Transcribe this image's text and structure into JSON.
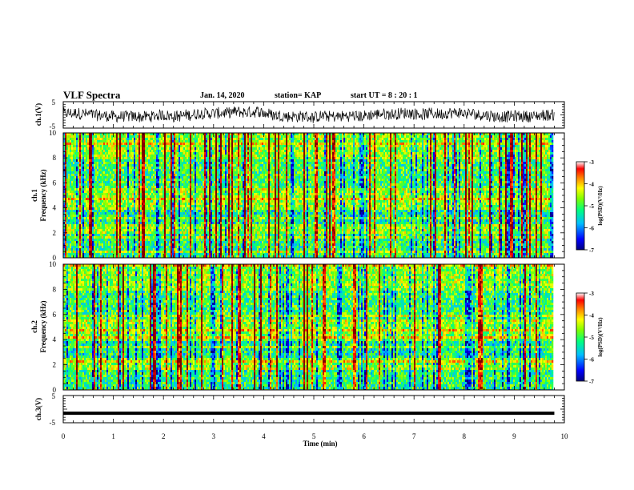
{
  "header": {
    "title": "VLF Spectra",
    "date": "Jan. 14, 2020",
    "station": "station= KAP",
    "start_ut": "start UT = 8 : 20 : 1"
  },
  "chart_data": [
    {
      "type": "line",
      "panel": "ch1-waveform",
      "ylabel": "ch.1(V)",
      "ylim": [
        -5,
        5
      ],
      "yticks": [
        "5",
        "-5"
      ],
      "xlim": [
        0,
        10
      ],
      "trace_color": "#000000",
      "note_values": "noisy waveform centered near 0 V, amplitude about ±3 V"
    },
    {
      "type": "heatmap",
      "panel": "ch1-spectrogram",
      "ylabel": "ch.1\nFrequency (kHz)",
      "ylabel_lines": [
        "ch.1",
        "Frequency (kHz)"
      ],
      "ylim": [
        0,
        10
      ],
      "yticks": [
        "0",
        "2",
        "4",
        "6",
        "8",
        "10"
      ],
      "xlim": [
        0,
        9.8
      ],
      "colorbar": {
        "label": "log(PSD)(V²/Hz)",
        "range": [
          -7,
          -3
        ],
        "ticks": [
          "-3",
          "-4",
          "-5",
          "-6",
          "-7"
        ],
        "colors": [
          "#00007f",
          "#0000ff",
          "#00bfff",
          "#00ff7f",
          "#7fff00",
          "#ffff00",
          "#ff7f00",
          "#ff0000",
          "#7f0000"
        ]
      }
    },
    {
      "type": "heatmap",
      "panel": "ch2-spectrogram",
      "ylabel": "ch.2\nFrequency (kHz)",
      "ylabel_lines": [
        "ch.2",
        "Frequency (kHz)"
      ],
      "ylim": [
        0,
        10
      ],
      "yticks": [
        "0",
        "2",
        "4",
        "6",
        "8",
        "10"
      ],
      "xlim": [
        0,
        9.8
      ],
      "colorbar": {
        "label": "log(PSD)(V²/Hz)",
        "range": [
          -7,
          -3
        ],
        "ticks": [
          "-3",
          "-4",
          "-5",
          "-6",
          "-7"
        ]
      }
    },
    {
      "type": "line",
      "panel": "ch3-waveform",
      "ylabel": "ch.3(V)",
      "ylim": [
        -5,
        5
      ],
      "yticks": [
        "5",
        "0",
        "-5"
      ],
      "xlim": [
        0,
        10
      ],
      "values_constant": -1.5,
      "trace_color": "#000000"
    }
  ],
  "x_axis": {
    "label": "Time (min)",
    "ticks": [
      "0",
      "1",
      "2",
      "3",
      "4",
      "5",
      "6",
      "7",
      "8",
      "9",
      "10"
    ],
    "range": [
      0,
      10
    ]
  },
  "colors": {
    "background": "#ffffff",
    "axes": "#000000"
  }
}
